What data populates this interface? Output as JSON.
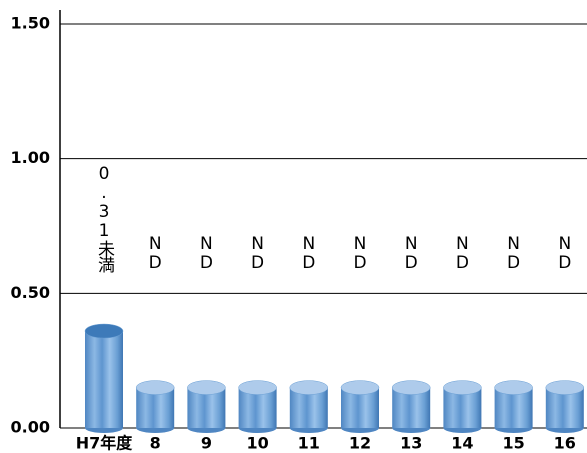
{
  "chart_data": {
    "type": "bar",
    "categories": [
      "H7年度",
      "8",
      "9",
      "10",
      "11",
      "12",
      "13",
      "14",
      "15",
      "16"
    ],
    "values": [
      0.36,
      0.15,
      0.15,
      0.15,
      0.15,
      0.15,
      0.15,
      0.15,
      0.15,
      0.15
    ],
    "annotations": [
      "0.31未満",
      "ND",
      "ND",
      "ND",
      "ND",
      "ND",
      "ND",
      "ND",
      "ND",
      "ND"
    ],
    "color": "#6a9fd4",
    "ylim": [
      0,
      1.5
    ],
    "yticks": [
      {
        "value": 0,
        "label": "0.00"
      },
      {
        "value": 0.5,
        "label": "0.50"
      },
      {
        "value": 1,
        "label": "1.00"
      },
      {
        "value": 1.5,
        "label": "1.50"
      }
    ],
    "grid": true
  }
}
